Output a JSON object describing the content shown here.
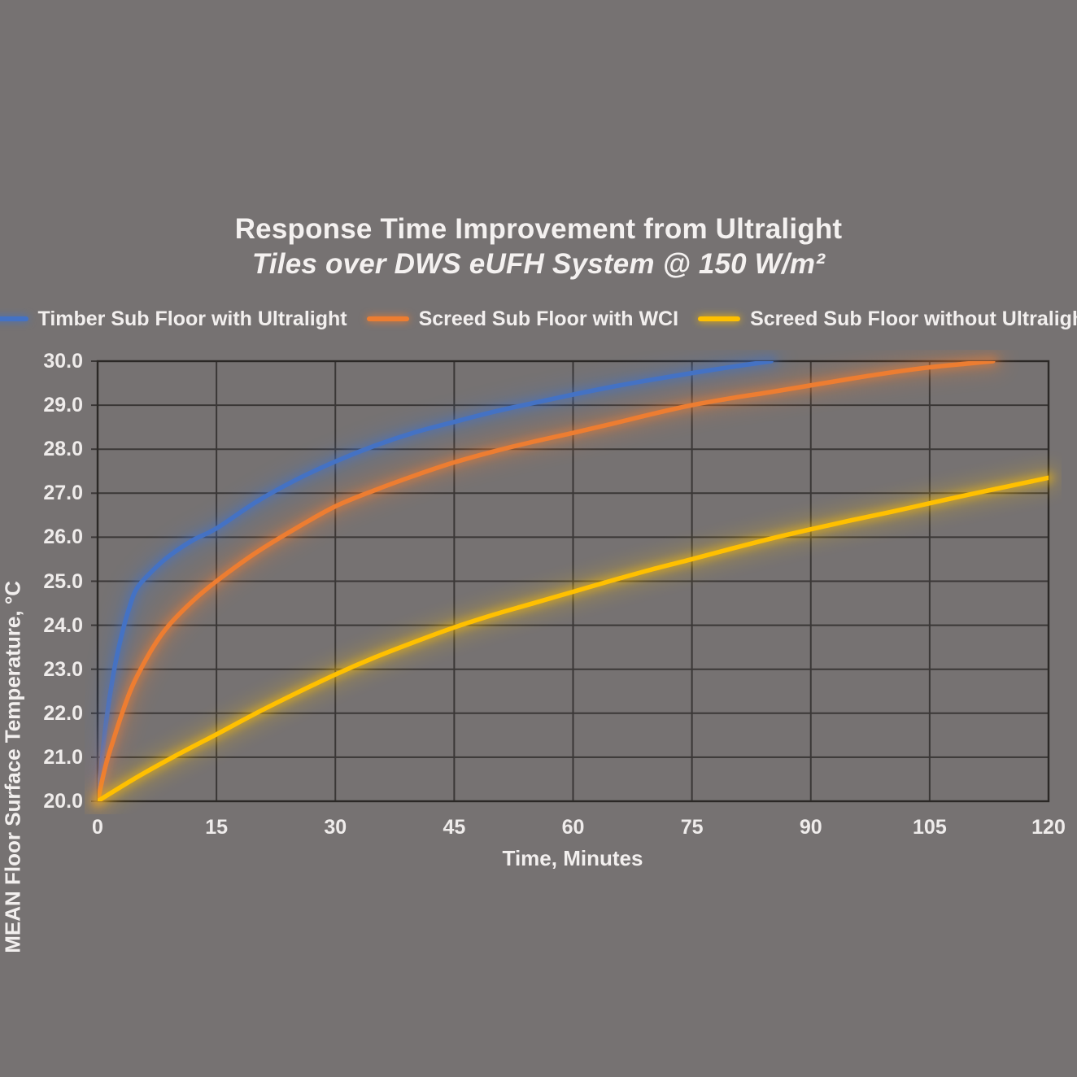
{
  "chart": {
    "title_line1": "Response Time Improvement from Ultralight",
    "title_line2": "Tiles over DWS eUFH System @ 150 W/m²",
    "xlabel": "Time, Minutes",
    "ylabel": "MEAN Floor Surface Temperature, °C"
  },
  "colors": {
    "background": "#767272",
    "grid": "#3a3736",
    "border": "#2b2826",
    "text": "#f2efee",
    "series_blue": "#4472C4",
    "series_orange": "#ED7D31",
    "series_yellow": "#FFC000"
  },
  "chart_data": {
    "type": "line",
    "title": "Response Time Improvement from Ultralight",
    "subtitle": "Tiles over DWS eUFH System @ 150 W/m²",
    "xlabel": "Time, Minutes",
    "ylabel": "MEAN Floor Surface Temperature, °C",
    "xlim": [
      0,
      120
    ],
    "ylim": [
      20.0,
      30.0
    ],
    "x_ticks": [
      0,
      15,
      30,
      45,
      60,
      75,
      90,
      105,
      120
    ],
    "y_ticks": [
      20.0,
      21.0,
      22.0,
      23.0,
      24.0,
      25.0,
      26.0,
      27.0,
      28.0,
      29.0,
      30.0
    ],
    "y_tick_decimals": 1,
    "grid": true,
    "legend_position": "top",
    "series": [
      {
        "name": "Timber Sub Floor with Ultralight",
        "color": "#4472C4",
        "points": [
          [
            0,
            20.0
          ],
          [
            1,
            21.7
          ],
          [
            2,
            22.9
          ],
          [
            3,
            23.75
          ],
          [
            4,
            24.4
          ],
          [
            5,
            24.85
          ],
          [
            7,
            25.25
          ],
          [
            9,
            25.57
          ],
          [
            12,
            25.93
          ],
          [
            15,
            26.2
          ],
          [
            20,
            26.8
          ],
          [
            25,
            27.3
          ],
          [
            30,
            27.72
          ],
          [
            35,
            28.08
          ],
          [
            40,
            28.38
          ],
          [
            45,
            28.62
          ],
          [
            50,
            28.85
          ],
          [
            55,
            29.05
          ],
          [
            60,
            29.24
          ],
          [
            65,
            29.42
          ],
          [
            70,
            29.58
          ],
          [
            75,
            29.73
          ],
          [
            80,
            29.87
          ],
          [
            85,
            30.0
          ]
        ]
      },
      {
        "name": "Screed Sub Floor with WCI",
        "color": "#ED7D31",
        "points": [
          [
            0,
            20.0
          ],
          [
            1,
            20.8
          ],
          [
            2,
            21.4
          ],
          [
            3,
            21.95
          ],
          [
            4,
            22.45
          ],
          [
            5,
            22.85
          ],
          [
            7,
            23.5
          ],
          [
            9,
            24.0
          ],
          [
            12,
            24.55
          ],
          [
            15,
            25.0
          ],
          [
            20,
            25.65
          ],
          [
            25,
            26.2
          ],
          [
            30,
            26.7
          ],
          [
            35,
            27.07
          ],
          [
            40,
            27.4
          ],
          [
            45,
            27.7
          ],
          [
            50,
            27.95
          ],
          [
            55,
            28.17
          ],
          [
            60,
            28.37
          ],
          [
            65,
            28.58
          ],
          [
            70,
            28.8
          ],
          [
            75,
            29.0
          ],
          [
            80,
            29.16
          ],
          [
            85,
            29.3
          ],
          [
            90,
            29.45
          ],
          [
            95,
            29.6
          ],
          [
            100,
            29.74
          ],
          [
            105,
            29.86
          ],
          [
            110,
            29.95
          ],
          [
            113,
            30.0
          ]
        ]
      },
      {
        "name": "Screed Sub Floor without Ultralight",
        "color": "#FFC000",
        "points": [
          [
            0,
            20.0
          ],
          [
            5,
            20.55
          ],
          [
            10,
            21.05
          ],
          [
            15,
            21.52
          ],
          [
            20,
            22.0
          ],
          [
            25,
            22.45
          ],
          [
            30,
            22.88
          ],
          [
            35,
            23.27
          ],
          [
            40,
            23.62
          ],
          [
            45,
            23.95
          ],
          [
            50,
            24.24
          ],
          [
            55,
            24.5
          ],
          [
            60,
            24.76
          ],
          [
            65,
            25.02
          ],
          [
            70,
            25.27
          ],
          [
            75,
            25.5
          ],
          [
            80,
            25.74
          ],
          [
            85,
            25.97
          ],
          [
            90,
            26.18
          ],
          [
            95,
            26.38
          ],
          [
            100,
            26.57
          ],
          [
            105,
            26.77
          ],
          [
            110,
            26.97
          ],
          [
            115,
            27.16
          ],
          [
            120,
            27.35
          ]
        ]
      }
    ]
  }
}
